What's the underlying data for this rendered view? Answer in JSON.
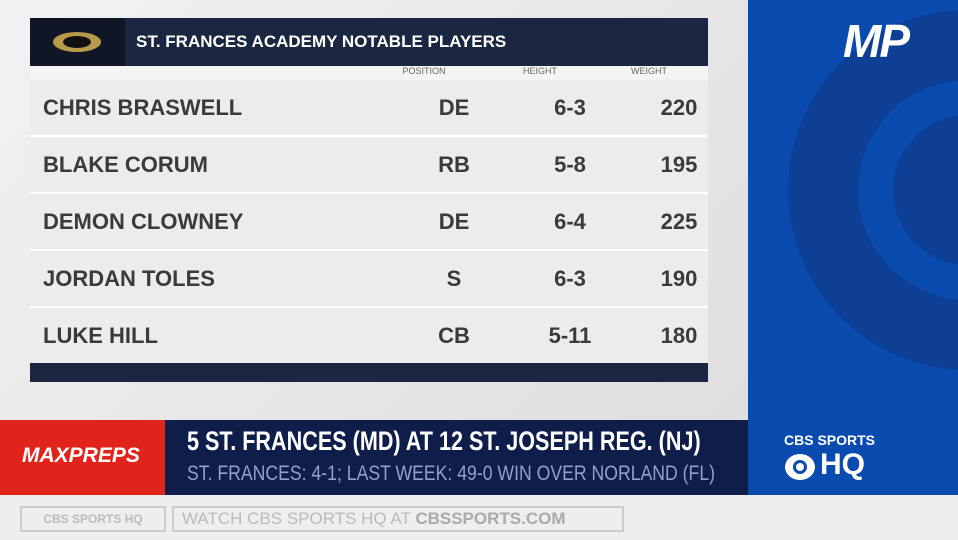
{
  "table": {
    "title": "ST. FRANCES ACADEMY NOTABLE PLAYERS",
    "columns": [
      "POSITION",
      "HEIGHT",
      "WEIGHT"
    ],
    "rows": [
      [
        "CHRIS BRASWELL",
        "DE",
        "6-3",
        220
      ],
      [
        "BLAKE CORUM",
        "RB",
        "5-8",
        195
      ],
      [
        "DEMON CLOWNEY",
        "DE",
        "6-4",
        225
      ],
      [
        "JORDAN TOLES",
        "S",
        "6-3",
        190
      ],
      [
        "LUKE HILL",
        "CB",
        "5-11",
        180
      ]
    ]
  },
  "corner_logo": "MP",
  "lower_third": {
    "brand": "MAXPREPS",
    "headline": "5 ST. FRANCES (MD) AT 12 ST. JOSEPH REG. (NJ)",
    "subline": "ST. FRANCES: 4-1; LAST WEEK: 49-0 WIN OVER NORLAND (FL)",
    "network": "CBS SPORTS",
    "network_sub": "HQ"
  },
  "ticker": {
    "channel": "CBS SPORTS HQ",
    "promo": "WATCH CBS SPORTS HQ AT",
    "url": "CBSSPORTS.COM"
  }
}
